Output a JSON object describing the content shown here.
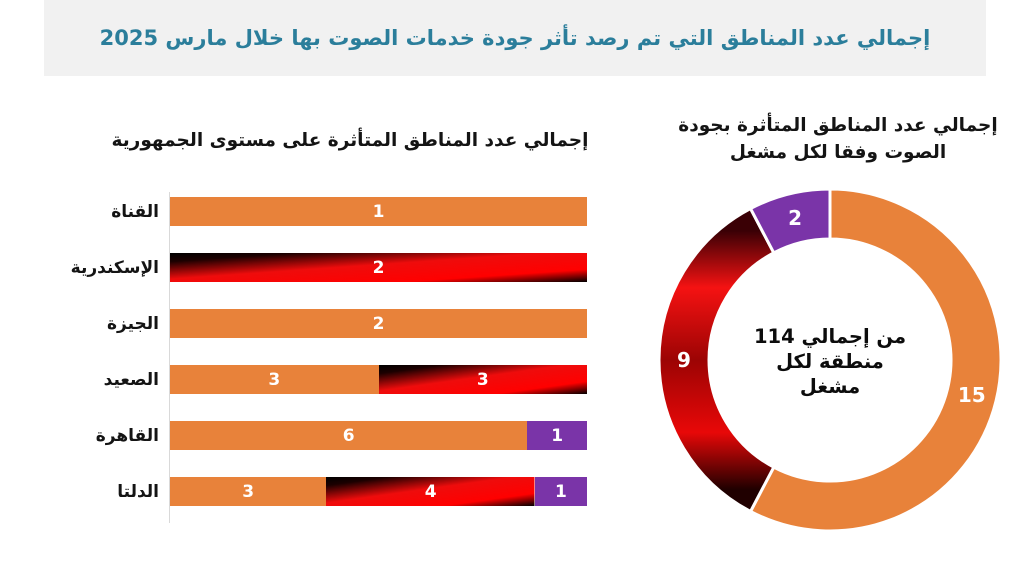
{
  "header": {
    "title": "إجمالي عدد المناطق التي تم رصد تأثر جودة خدمات الصوت بها خلال مارس 2025",
    "background": "#f1f1f1",
    "text_color": "#2b7e9b"
  },
  "colors": {
    "orange": "#e8823a",
    "purple": "#7a34a8",
    "red_gradient_stops": [
      "#000000",
      "#1c0000",
      "#ee0c0c",
      "#ff0000",
      "#000000"
    ],
    "axis_line": "#d9d9d9",
    "value_label": "#ffffff",
    "title_text": "#141414"
  },
  "chart_data": [
    {
      "type": "bar",
      "subtype": "horizontal-100%-stacked",
      "title": "إجمالي عدد المناطق المتأثرة على مستوى الجمهورية",
      "categories": [
        "القناة",
        "الإسكندرية",
        "الجيزة",
        "الصعيد",
        "القاهرة",
        "الدلتا"
      ],
      "series": [
        {
          "name": "orange",
          "values": [
            1,
            0,
            2,
            3,
            6,
            3
          ]
        },
        {
          "name": "red",
          "values": [
            0,
            2,
            0,
            3,
            0,
            4
          ]
        },
        {
          "name": "purple",
          "values": [
            0,
            0,
            0,
            0,
            1,
            1
          ]
        }
      ],
      "rows": [
        {
          "category": "القناة",
          "segments": [
            {
              "series": "orange",
              "value": 1
            }
          ]
        },
        {
          "category": "الإسكندرية",
          "segments": [
            {
              "series": "red",
              "value": 2
            }
          ]
        },
        {
          "category": "الجيزة",
          "segments": [
            {
              "series": "orange",
              "value": 2
            }
          ]
        },
        {
          "category": "الصعيد",
          "segments": [
            {
              "series": "orange",
              "value": 3
            },
            {
              "series": "red",
              "value": 3
            }
          ]
        },
        {
          "category": "القاهرة",
          "segments": [
            {
              "series": "orange",
              "value": 6
            },
            {
              "series": "purple",
              "value": 1
            }
          ]
        },
        {
          "category": "الدلتا",
          "segments": [
            {
              "series": "orange",
              "value": 3
            },
            {
              "series": "red",
              "value": 4
            },
            {
              "series": "purple",
              "value": 1
            }
          ]
        }
      ],
      "value_labels_shown": true,
      "legend": "none",
      "grid": "left-axis-line-only"
    },
    {
      "type": "pie",
      "subtype": "donut",
      "title": "إجمالي عدد المناطق المتأثرة بجودة الصوت وفقا لكل مشغل",
      "title_lines": [
        "إجمالي عدد المناطق المتأثرة بجودة",
        "الصوت وفقا لكل مشغل"
      ],
      "slices": [
        {
          "label": "15",
          "value": 15,
          "series": "orange"
        },
        {
          "label": "9",
          "value": 9,
          "series": "red"
        },
        {
          "label": "2",
          "value": 2,
          "series": "purple"
        }
      ],
      "start_angle_deg": 0,
      "direction": "clockwise",
      "center_text": "من إجمالي 114 منطقة لكل مشغل",
      "center_text_lines": [
        "من إجمالي 114",
        "منطقة لكل",
        "مشغل"
      ],
      "legend": "none"
    }
  ]
}
